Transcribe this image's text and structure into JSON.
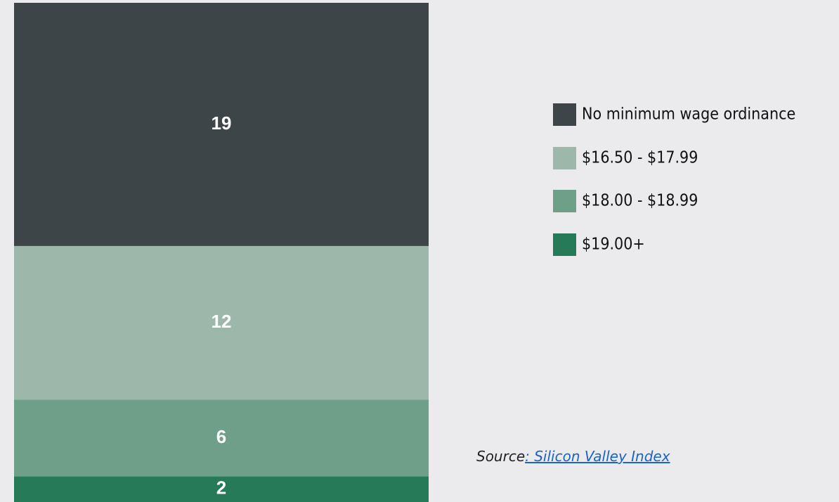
{
  "chart_data": {
    "type": "bar",
    "stacked": true,
    "series": [
      {
        "name": "No minimum wage ordinance",
        "color": "#3e4548",
        "values": [
          19
        ]
      },
      {
        "name": "$16.50 - $17.99",
        "color": "#9db8ab",
        "values": [
          12
        ]
      },
      {
        "name": "$18.00 - $18.99",
        "color": "#6e9f88",
        "values": [
          6
        ]
      },
      {
        "name": "$19.00+",
        "color": "#277a57",
        "values": [
          2
        ]
      }
    ],
    "source": {
      "prefix": "Source",
      "link": ": Silicon Valley Index"
    }
  }
}
